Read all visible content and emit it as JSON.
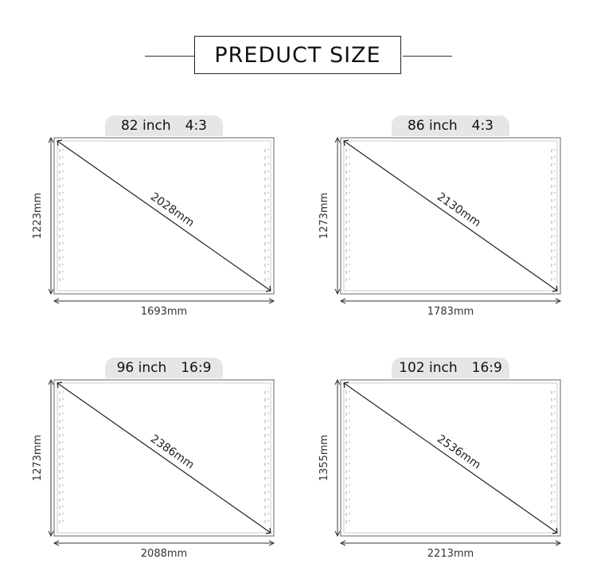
{
  "title": "PREDUCT SIZE",
  "panels": [
    {
      "size": "82 inch",
      "ratio": "4:3",
      "diagonal": "2028mm",
      "height": "1223mm",
      "width": "1693mm"
    },
    {
      "size": "86 inch",
      "ratio": "4:3",
      "diagonal": "2130mm",
      "height": "1273mm",
      "width": "1783mm"
    },
    {
      "size": "96 inch",
      "ratio": "16:9",
      "diagonal": "2386mm",
      "height": "1273mm",
      "width": "2088mm"
    },
    {
      "size": "102 inch",
      "ratio": "16:9",
      "diagonal": "2536mm",
      "height": "1355mm",
      "width": "2213mm"
    }
  ]
}
